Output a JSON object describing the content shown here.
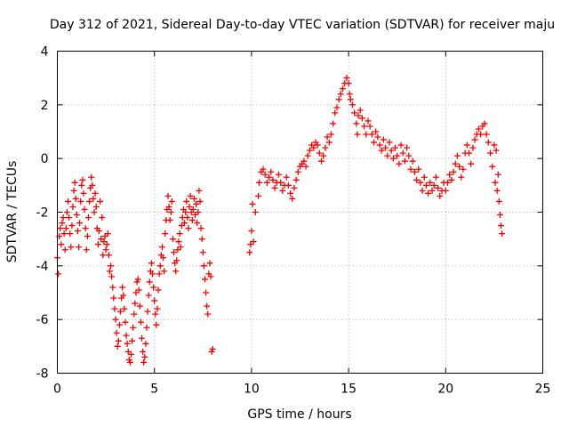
{
  "chart_data": {
    "type": "scatter",
    "title": "Day 312 of 2021, Sidereal Day-to-day VTEC variation (SDTVAR) for receiver maju",
    "xlabel": "GPS time / hours",
    "ylabel": "SDTVAR / TECUs",
    "xlim": [
      0,
      25
    ],
    "ylim": [
      -8,
      4
    ],
    "xticks": [
      0,
      5,
      10,
      15,
      20,
      25
    ],
    "yticks": [
      -8,
      -6,
      -4,
      -2,
      0,
      2,
      4
    ],
    "xtick_labels": [
      "0",
      "5",
      "10",
      "15",
      "20",
      "25"
    ],
    "ytick_labels": [
      "-8",
      "-6",
      "-4",
      "-2",
      "0",
      "2",
      "4"
    ],
    "grid": true,
    "marker": "plus",
    "color": "#ff0000",
    "series": [
      {
        "points": [
          [
            0.0,
            -3.7
          ],
          [
            0.05,
            -4.3
          ],
          [
            0.1,
            -2.9
          ],
          [
            0.15,
            -2.6
          ],
          [
            0.2,
            -3.2
          ],
          [
            0.25,
            -2.4
          ],
          [
            0.3,
            -2.2
          ],
          [
            0.35,
            -2.8
          ],
          [
            0.4,
            -3.4
          ],
          [
            0.45,
            -2.6
          ],
          [
            0.5,
            -2.0
          ],
          [
            0.55,
            -1.6
          ],
          [
            0.6,
            -2.2
          ],
          [
            0.65,
            -2.8
          ],
          [
            0.7,
            -3.3
          ],
          [
            0.75,
            -2.5
          ],
          [
            0.8,
            -1.8
          ],
          [
            0.85,
            -1.2
          ],
          [
            0.9,
            -0.9
          ],
          [
            0.95,
            -1.5
          ],
          [
            1.0,
            -2.1
          ],
          [
            1.05,
            -2.7
          ],
          [
            1.1,
            -3.3
          ],
          [
            1.15,
            -2.4
          ],
          [
            1.2,
            -1.6
          ],
          [
            1.25,
            -1.0
          ],
          [
            1.3,
            -0.8
          ],
          [
            1.35,
            -1.3
          ],
          [
            1.4,
            -1.9
          ],
          [
            1.45,
            -2.6
          ],
          [
            1.5,
            -3.4
          ],
          [
            1.55,
            -2.9
          ],
          [
            1.6,
            -2.2
          ],
          [
            1.65,
            -1.6
          ],
          [
            1.7,
            -1.1
          ],
          [
            1.75,
            -0.7
          ],
          [
            1.8,
            -1.0
          ],
          [
            1.85,
            -1.5
          ],
          [
            1.9,
            -2.0
          ],
          [
            1.95,
            -1.3
          ],
          [
            2.0,
            -1.8
          ],
          [
            2.05,
            -2.6
          ],
          [
            2.1,
            -3.2
          ],
          [
            2.15,
            -2.7
          ],
          [
            2.2,
            -1.6
          ],
          [
            2.25,
            -3.0
          ],
          [
            2.3,
            -2.2
          ],
          [
            2.35,
            -3.6
          ],
          [
            2.4,
            -3.1
          ],
          [
            2.45,
            -2.9
          ],
          [
            2.5,
            -3.4
          ],
          [
            2.55,
            -3.2
          ],
          [
            2.6,
            -2.8
          ],
          [
            2.65,
            -3.6
          ],
          [
            2.7,
            -4.2
          ],
          [
            2.75,
            -4.0
          ],
          [
            2.8,
            -4.4
          ],
          [
            2.85,
            -4.8
          ],
          [
            2.9,
            -5.2
          ],
          [
            2.95,
            -5.6
          ],
          [
            3.0,
            -6.0
          ],
          [
            3.05,
            -6.5
          ],
          [
            3.1,
            -7.0
          ],
          [
            3.15,
            -6.8
          ],
          [
            3.2,
            -6.2
          ],
          [
            3.25,
            -5.7
          ],
          [
            3.3,
            -5.2
          ],
          [
            3.35,
            -4.8
          ],
          [
            3.4,
            -5.1
          ],
          [
            3.45,
            -5.6
          ],
          [
            3.5,
            -6.1
          ],
          [
            3.55,
            -6.6
          ],
          [
            3.6,
            -6.9
          ],
          [
            3.65,
            -7.2
          ],
          [
            3.7,
            -7.5
          ],
          [
            3.75,
            -7.6
          ],
          [
            3.8,
            -7.3
          ],
          [
            3.85,
            -6.8
          ],
          [
            3.9,
            -6.3
          ],
          [
            3.95,
            -5.8
          ],
          [
            4.0,
            -5.4
          ],
          [
            4.05,
            -5.0
          ],
          [
            4.1,
            -4.6
          ],
          [
            4.15,
            -4.5
          ],
          [
            4.2,
            -4.9
          ],
          [
            4.25,
            -5.5
          ],
          [
            4.3,
            -6.1
          ],
          [
            4.35,
            -6.7
          ],
          [
            4.4,
            -7.2
          ],
          [
            4.45,
            -7.6
          ],
          [
            4.5,
            -7.4
          ],
          [
            4.55,
            -6.9
          ],
          [
            4.6,
            -6.3
          ],
          [
            4.65,
            -5.7
          ],
          [
            4.7,
            -5.1
          ],
          [
            4.75,
            -4.6
          ],
          [
            4.8,
            -4.2
          ],
          [
            4.85,
            -3.9
          ],
          [
            4.9,
            -4.3
          ],
          [
            4.95,
            -4.8
          ],
          [
            5.0,
            -5.3
          ],
          [
            5.05,
            -5.8
          ],
          [
            5.1,
            -6.2
          ],
          [
            5.15,
            -5.6
          ],
          [
            5.2,
            -4.9
          ],
          [
            5.25,
            -4.3
          ],
          [
            5.3,
            -4.0
          ],
          [
            5.35,
            -3.6
          ],
          [
            5.4,
            -3.3
          ],
          [
            5.45,
            -3.7
          ],
          [
            5.5,
            -4.2
          ],
          [
            5.55,
            -2.8
          ],
          [
            5.6,
            -2.3
          ],
          [
            5.65,
            -1.9
          ],
          [
            5.7,
            -1.4
          ],
          [
            5.75,
            -1.8
          ],
          [
            5.8,
            -2.3
          ],
          [
            5.85,
            -2.0
          ],
          [
            5.9,
            -1.6
          ],
          [
            5.95,
            -3.0
          ],
          [
            6.0,
            -3.5
          ],
          [
            6.05,
            -3.9
          ],
          [
            6.1,
            -4.2
          ],
          [
            6.15,
            -3.8
          ],
          [
            6.2,
            -3.4
          ],
          [
            6.25,
            -3.1
          ],
          [
            6.3,
            -2.8
          ],
          [
            6.35,
            -3.3
          ],
          [
            6.4,
            -2.5
          ],
          [
            6.45,
            -2.2
          ],
          [
            6.5,
            -1.9
          ],
          [
            6.55,
            -2.4
          ],
          [
            6.6,
            -2.0
          ],
          [
            6.65,
            -1.6
          ],
          [
            6.7,
            -2.2
          ],
          [
            6.75,
            -2.6
          ],
          [
            6.8,
            -1.8
          ],
          [
            6.85,
            -1.4
          ],
          [
            6.9,
            -2.0
          ],
          [
            6.95,
            -2.3
          ],
          [
            7.0,
            -1.9
          ],
          [
            7.05,
            -1.5
          ],
          [
            7.1,
            -2.1
          ],
          [
            7.15,
            -1.7
          ],
          [
            7.2,
            -2.4
          ],
          [
            7.25,
            -2.0
          ],
          [
            7.3,
            -1.2
          ],
          [
            7.35,
            -1.6
          ],
          [
            7.4,
            -2.6
          ],
          [
            7.45,
            -3.0
          ],
          [
            7.5,
            -3.5
          ],
          [
            7.55,
            -4.0
          ],
          [
            7.6,
            -4.5
          ],
          [
            7.65,
            -5.0
          ],
          [
            7.7,
            -5.5
          ],
          [
            7.75,
            -5.8
          ],
          [
            7.8,
            -4.3
          ],
          [
            7.85,
            -3.9
          ],
          [
            7.9,
            -4.4
          ],
          [
            7.95,
            -7.2
          ],
          [
            8.0,
            -7.1
          ],
          [
            9.9,
            -3.5
          ],
          [
            9.95,
            -3.2
          ],
          [
            10.0,
            -2.7
          ],
          [
            10.05,
            -1.7
          ],
          [
            10.1,
            -3.1
          ],
          [
            10.2,
            -2.0
          ],
          [
            10.35,
            -1.4
          ],
          [
            10.4,
            -0.9
          ],
          [
            10.5,
            -0.5
          ],
          [
            10.6,
            -0.4
          ],
          [
            10.7,
            -0.6
          ],
          [
            10.8,
            -0.9
          ],
          [
            10.9,
            -0.7
          ],
          [
            11.0,
            -0.5
          ],
          [
            11.1,
            -0.8
          ],
          [
            11.2,
            -1.1
          ],
          [
            11.3,
            -0.9
          ],
          [
            11.4,
            -0.6
          ],
          [
            11.5,
            -0.9
          ],
          [
            11.6,
            -1.2
          ],
          [
            11.7,
            -1.0
          ],
          [
            11.8,
            -0.7
          ],
          [
            11.9,
            -1.0
          ],
          [
            12.0,
            -1.3
          ],
          [
            12.1,
            -1.5
          ],
          [
            12.2,
            -1.1
          ],
          [
            12.3,
            -0.8
          ],
          [
            12.4,
            -0.5
          ],
          [
            12.5,
            -0.3
          ],
          [
            12.6,
            -0.2
          ],
          [
            12.7,
            -0.1
          ],
          [
            12.8,
            -0.3
          ],
          [
            12.9,
            0.1
          ],
          [
            13.0,
            0.3
          ],
          [
            13.1,
            0.5
          ],
          [
            13.2,
            0.4
          ],
          [
            13.3,
            0.6
          ],
          [
            13.4,
            0.5
          ],
          [
            13.5,
            0.2
          ],
          [
            13.6,
            -0.1
          ],
          [
            13.7,
            0.1
          ],
          [
            13.8,
            0.4
          ],
          [
            13.9,
            0.8
          ],
          [
            14.0,
            0.6
          ],
          [
            14.1,
            0.9
          ],
          [
            14.2,
            1.3
          ],
          [
            14.3,
            1.7
          ],
          [
            14.4,
            1.9
          ],
          [
            14.5,
            2.2
          ],
          [
            14.6,
            2.4
          ],
          [
            14.7,
            2.6
          ],
          [
            14.8,
            2.8
          ],
          [
            14.9,
            3.0
          ],
          [
            15.0,
            2.8
          ],
          [
            15.05,
            2.4
          ],
          [
            15.1,
            2.2
          ],
          [
            15.2,
            2.0
          ],
          [
            15.3,
            1.7
          ],
          [
            15.4,
            1.3
          ],
          [
            15.45,
            0.9
          ],
          [
            15.5,
            1.6
          ],
          [
            15.6,
            1.8
          ],
          [
            15.7,
            1.5
          ],
          [
            15.8,
            1.2
          ],
          [
            15.9,
            0.9
          ],
          [
            16.0,
            1.4
          ],
          [
            16.1,
            1.2
          ],
          [
            16.2,
            0.9
          ],
          [
            16.3,
            0.6
          ],
          [
            16.4,
            1.0
          ],
          [
            16.5,
            0.8
          ],
          [
            16.6,
            0.5
          ],
          [
            16.7,
            0.3
          ],
          [
            16.8,
            0.7
          ],
          [
            16.9,
            0.4
          ],
          [
            17.0,
            0.1
          ],
          [
            17.1,
            0.6
          ],
          [
            17.2,
            0.3
          ],
          [
            17.3,
            0.0
          ],
          [
            17.4,
            0.4
          ],
          [
            17.5,
            0.1
          ],
          [
            17.6,
            -0.2
          ],
          [
            17.7,
            0.5
          ],
          [
            17.8,
            0.2
          ],
          [
            17.9,
            -0.1
          ],
          [
            18.0,
            0.4
          ],
          [
            18.1,
            0.1
          ],
          [
            18.2,
            -0.4
          ],
          [
            18.3,
            -0.1
          ],
          [
            18.4,
            -0.5
          ],
          [
            18.5,
            -0.8
          ],
          [
            18.6,
            -0.4
          ],
          [
            18.7,
            -0.9
          ],
          [
            18.8,
            -1.2
          ],
          [
            18.9,
            -0.7
          ],
          [
            19.0,
            -1.0
          ],
          [
            19.1,
            -1.3
          ],
          [
            19.2,
            -0.9
          ],
          [
            19.3,
            -1.2
          ],
          [
            19.4,
            -1.0
          ],
          [
            19.5,
            -0.7
          ],
          [
            19.6,
            -1.1
          ],
          [
            19.7,
            -1.4
          ],
          [
            19.8,
            -1.2
          ],
          [
            19.9,
            -0.9
          ],
          [
            20.0,
            -1.2
          ],
          [
            20.1,
            -0.9
          ],
          [
            20.2,
            -0.6
          ],
          [
            20.3,
            -0.8
          ],
          [
            20.4,
            -0.5
          ],
          [
            20.5,
            -0.2
          ],
          [
            20.6,
            0.1
          ],
          [
            20.7,
            -0.3
          ],
          [
            20.8,
            -0.7
          ],
          [
            20.9,
            -0.4
          ],
          [
            21.0,
            0.2
          ],
          [
            21.1,
            0.5
          ],
          [
            21.2,
            0.2
          ],
          [
            21.3,
            -0.2
          ],
          [
            21.4,
            0.4
          ],
          [
            21.5,
            0.7
          ],
          [
            21.6,
            0.9
          ],
          [
            21.7,
            1.1
          ],
          [
            21.8,
            0.9
          ],
          [
            21.9,
            1.2
          ],
          [
            22.0,
            1.3
          ],
          [
            22.1,
            0.9
          ],
          [
            22.2,
            0.6
          ],
          [
            22.3,
            0.2
          ],
          [
            22.4,
            -0.3
          ],
          [
            22.5,
            0.5
          ],
          [
            22.55,
            -0.9
          ],
          [
            22.6,
            0.3
          ],
          [
            22.65,
            -1.2
          ],
          [
            22.7,
            -0.6
          ],
          [
            22.75,
            -1.6
          ],
          [
            22.8,
            -2.1
          ],
          [
            22.85,
            -2.5
          ],
          [
            22.9,
            -2.8
          ]
        ]
      }
    ]
  }
}
